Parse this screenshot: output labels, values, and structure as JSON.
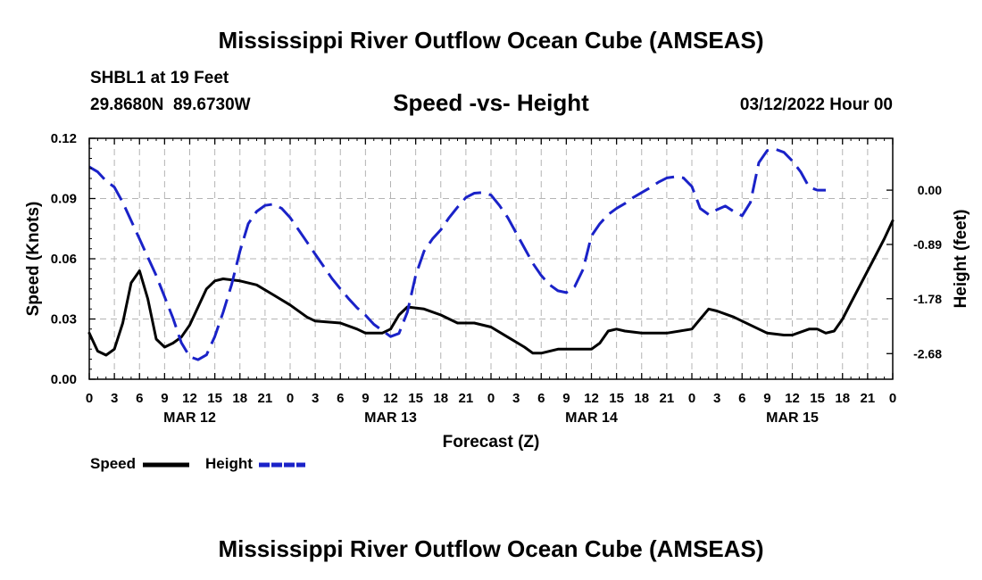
{
  "page": {
    "title_top": "Mississippi River Outflow Ocean Cube (AMSEAS)",
    "title_bottom": "Mississippi River Outflow Ocean Cube (AMSEAS)",
    "station": "SHBL1 at 19 Feet",
    "coords": "29.8680N  89.6730W",
    "subtitle": "Speed -vs- Height",
    "datetime": "03/12/2022 Hour 00"
  },
  "chart_data": {
    "type": "line",
    "title": "Speed -vs- Height",
    "xlabel": "Forecast (Z)",
    "ylabel_left": "Speed (Knots)",
    "ylabel_right": "Height (feet)",
    "x_range": [
      0,
      96
    ],
    "y_left_range": [
      0,
      0.12
    ],
    "y_right_range": [
      -3.1,
      0.85
    ],
    "grid": true,
    "legend_position": "bottom-left",
    "x_ticks": [
      0,
      3,
      6,
      9,
      12,
      15,
      18,
      21,
      24,
      27,
      30,
      33,
      36,
      39,
      42,
      45,
      48,
      51,
      54,
      57,
      60,
      63,
      66,
      69,
      72,
      75,
      78,
      81,
      84,
      87,
      90,
      93,
      96
    ],
    "x_tick_labels": [
      "0",
      "3",
      "6",
      "9",
      "12",
      "15",
      "18",
      "21",
      "0",
      "3",
      "6",
      "9",
      "12",
      "15",
      "18",
      "21",
      "0",
      "3",
      "6",
      "9",
      "12",
      "15",
      "18",
      "21",
      "0",
      "3",
      "6",
      "9",
      "12",
      "15",
      "18",
      "21",
      "0"
    ],
    "date_labels": [
      {
        "x": 12,
        "label": "MAR 12"
      },
      {
        "x": 36,
        "label": "MAR 13"
      },
      {
        "x": 60,
        "label": "MAR 14"
      },
      {
        "x": 84,
        "label": "MAR 15"
      }
    ],
    "y_left_ticks": [
      {
        "v": 0.0,
        "label": "0.00"
      },
      {
        "v": 0.03,
        "label": "0.03"
      },
      {
        "v": 0.06,
        "label": "0.06"
      },
      {
        "v": 0.09,
        "label": "0.09"
      },
      {
        "v": 0.12,
        "label": "0.12"
      }
    ],
    "y_right_ticks": [
      {
        "v": 0.0,
        "label": "0.00"
      },
      {
        "v": -0.89,
        "label": "-0.89"
      },
      {
        "v": -1.78,
        "label": "-1.78"
      },
      {
        "v": -2.68,
        "label": "-2.68"
      }
    ],
    "series": [
      {
        "name": "Speed",
        "axis": "left",
        "color": "#000000",
        "dash": "solid",
        "points": [
          [
            0,
            0.023
          ],
          [
            1,
            0.014
          ],
          [
            2,
            0.012
          ],
          [
            3,
            0.015
          ],
          [
            4,
            0.028
          ],
          [
            5,
            0.048
          ],
          [
            6,
            0.054
          ],
          [
            7,
            0.04
          ],
          [
            8,
            0.02
          ],
          [
            9,
            0.016
          ],
          [
            10,
            0.018
          ],
          [
            11,
            0.021
          ],
          [
            12,
            0.027
          ],
          [
            13,
            0.036
          ],
          [
            14,
            0.045
          ],
          [
            15,
            0.049
          ],
          [
            16,
            0.05
          ],
          [
            18,
            0.049
          ],
          [
            20,
            0.047
          ],
          [
            22,
            0.042
          ],
          [
            24,
            0.037
          ],
          [
            26,
            0.031
          ],
          [
            27,
            0.029
          ],
          [
            30,
            0.028
          ],
          [
            32,
            0.025
          ],
          [
            33,
            0.023
          ],
          [
            35,
            0.023
          ],
          [
            36,
            0.025
          ],
          [
            37,
            0.032
          ],
          [
            38,
            0.036
          ],
          [
            40,
            0.035
          ],
          [
            42,
            0.032
          ],
          [
            44,
            0.028
          ],
          [
            46,
            0.028
          ],
          [
            48,
            0.026
          ],
          [
            50,
            0.021
          ],
          [
            52,
            0.016
          ],
          [
            53,
            0.013
          ],
          [
            54,
            0.013
          ],
          [
            56,
            0.015
          ],
          [
            58,
            0.015
          ],
          [
            60,
            0.015
          ],
          [
            61,
            0.018
          ],
          [
            62,
            0.024
          ],
          [
            63,
            0.025
          ],
          [
            64,
            0.024
          ],
          [
            66,
            0.023
          ],
          [
            69,
            0.023
          ],
          [
            72,
            0.025
          ],
          [
            73,
            0.03
          ],
          [
            74,
            0.035
          ],
          [
            75,
            0.034
          ],
          [
            77,
            0.031
          ],
          [
            79,
            0.027
          ],
          [
            81,
            0.023
          ],
          [
            83,
            0.022
          ],
          [
            84,
            0.022
          ],
          [
            86,
            0.025
          ],
          [
            87,
            0.025
          ],
          [
            88,
            0.023
          ],
          [
            89,
            0.024
          ],
          [
            90,
            0.03
          ],
          [
            91,
            0.038
          ],
          [
            92,
            0.046
          ],
          [
            93,
            0.054
          ],
          [
            94,
            0.062
          ],
          [
            95,
            0.07
          ],
          [
            96,
            0.079
          ]
        ]
      },
      {
        "name": "Height",
        "axis": "right",
        "color": "#1a22c8",
        "dash": "dashed",
        "points": [
          [
            0,
            0.38
          ],
          [
            1,
            0.3
          ],
          [
            2,
            0.15
          ],
          [
            3,
            0.05
          ],
          [
            4,
            -0.2
          ],
          [
            5,
            -0.5
          ],
          [
            6,
            -0.8
          ],
          [
            7,
            -1.1
          ],
          [
            8,
            -1.4
          ],
          [
            9,
            -1.75
          ],
          [
            10,
            -2.1
          ],
          [
            11,
            -2.5
          ],
          [
            12,
            -2.73
          ],
          [
            13,
            -2.78
          ],
          [
            14,
            -2.7
          ],
          [
            15,
            -2.4
          ],
          [
            16,
            -2.0
          ],
          [
            17,
            -1.55
          ],
          [
            18,
            -1.0
          ],
          [
            19,
            -0.55
          ],
          [
            20,
            -0.35
          ],
          [
            21,
            -0.25
          ],
          [
            22,
            -0.23
          ],
          [
            23,
            -0.3
          ],
          [
            24,
            -0.45
          ],
          [
            25,
            -0.65
          ],
          [
            26,
            -0.85
          ],
          [
            27,
            -1.05
          ],
          [
            28,
            -1.25
          ],
          [
            29,
            -1.45
          ],
          [
            30,
            -1.62
          ],
          [
            31,
            -1.78
          ],
          [
            32,
            -1.93
          ],
          [
            33,
            -2.05
          ],
          [
            34,
            -2.2
          ],
          [
            35,
            -2.3
          ],
          [
            36,
            -2.4
          ],
          [
            37,
            -2.35
          ],
          [
            38,
            -2.0
          ],
          [
            39,
            -1.4
          ],
          [
            40,
            -1.0
          ],
          [
            41,
            -0.8
          ],
          [
            42,
            -0.65
          ],
          [
            43,
            -0.45
          ],
          [
            44,
            -0.28
          ],
          [
            45,
            -0.12
          ],
          [
            46,
            -0.05
          ],
          [
            47,
            -0.04
          ],
          [
            48,
            -0.08
          ],
          [
            49,
            -0.25
          ],
          [
            50,
            -0.45
          ],
          [
            51,
            -0.7
          ],
          [
            52,
            -0.95
          ],
          [
            53,
            -1.2
          ],
          [
            54,
            -1.4
          ],
          [
            55,
            -1.55
          ],
          [
            56,
            -1.65
          ],
          [
            57,
            -1.68
          ],
          [
            58,
            -1.58
          ],
          [
            59,
            -1.3
          ],
          [
            60,
            -0.75
          ],
          [
            61,
            -0.55
          ],
          [
            62,
            -0.4
          ],
          [
            63,
            -0.3
          ],
          [
            64,
            -0.22
          ],
          [
            65,
            -0.12
          ],
          [
            66,
            -0.04
          ],
          [
            67,
            0.04
          ],
          [
            68,
            0.13
          ],
          [
            69,
            0.2
          ],
          [
            70,
            0.22
          ],
          [
            71,
            0.2
          ],
          [
            72,
            0.06
          ],
          [
            73,
            -0.3
          ],
          [
            74,
            -0.4
          ],
          [
            75,
            -0.32
          ],
          [
            76,
            -0.26
          ],
          [
            77,
            -0.35
          ],
          [
            78,
            -0.42
          ],
          [
            79,
            -0.2
          ],
          [
            80,
            0.45
          ],
          [
            81,
            0.65
          ],
          [
            82,
            0.67
          ],
          [
            83,
            0.62
          ],
          [
            84,
            0.48
          ],
          [
            85,
            0.3
          ],
          [
            86,
            0.05
          ],
          [
            87,
            0.0
          ],
          [
            88,
            0.0
          ]
        ]
      }
    ]
  },
  "legend": {
    "speed_label": "Speed",
    "height_label": "Height"
  }
}
